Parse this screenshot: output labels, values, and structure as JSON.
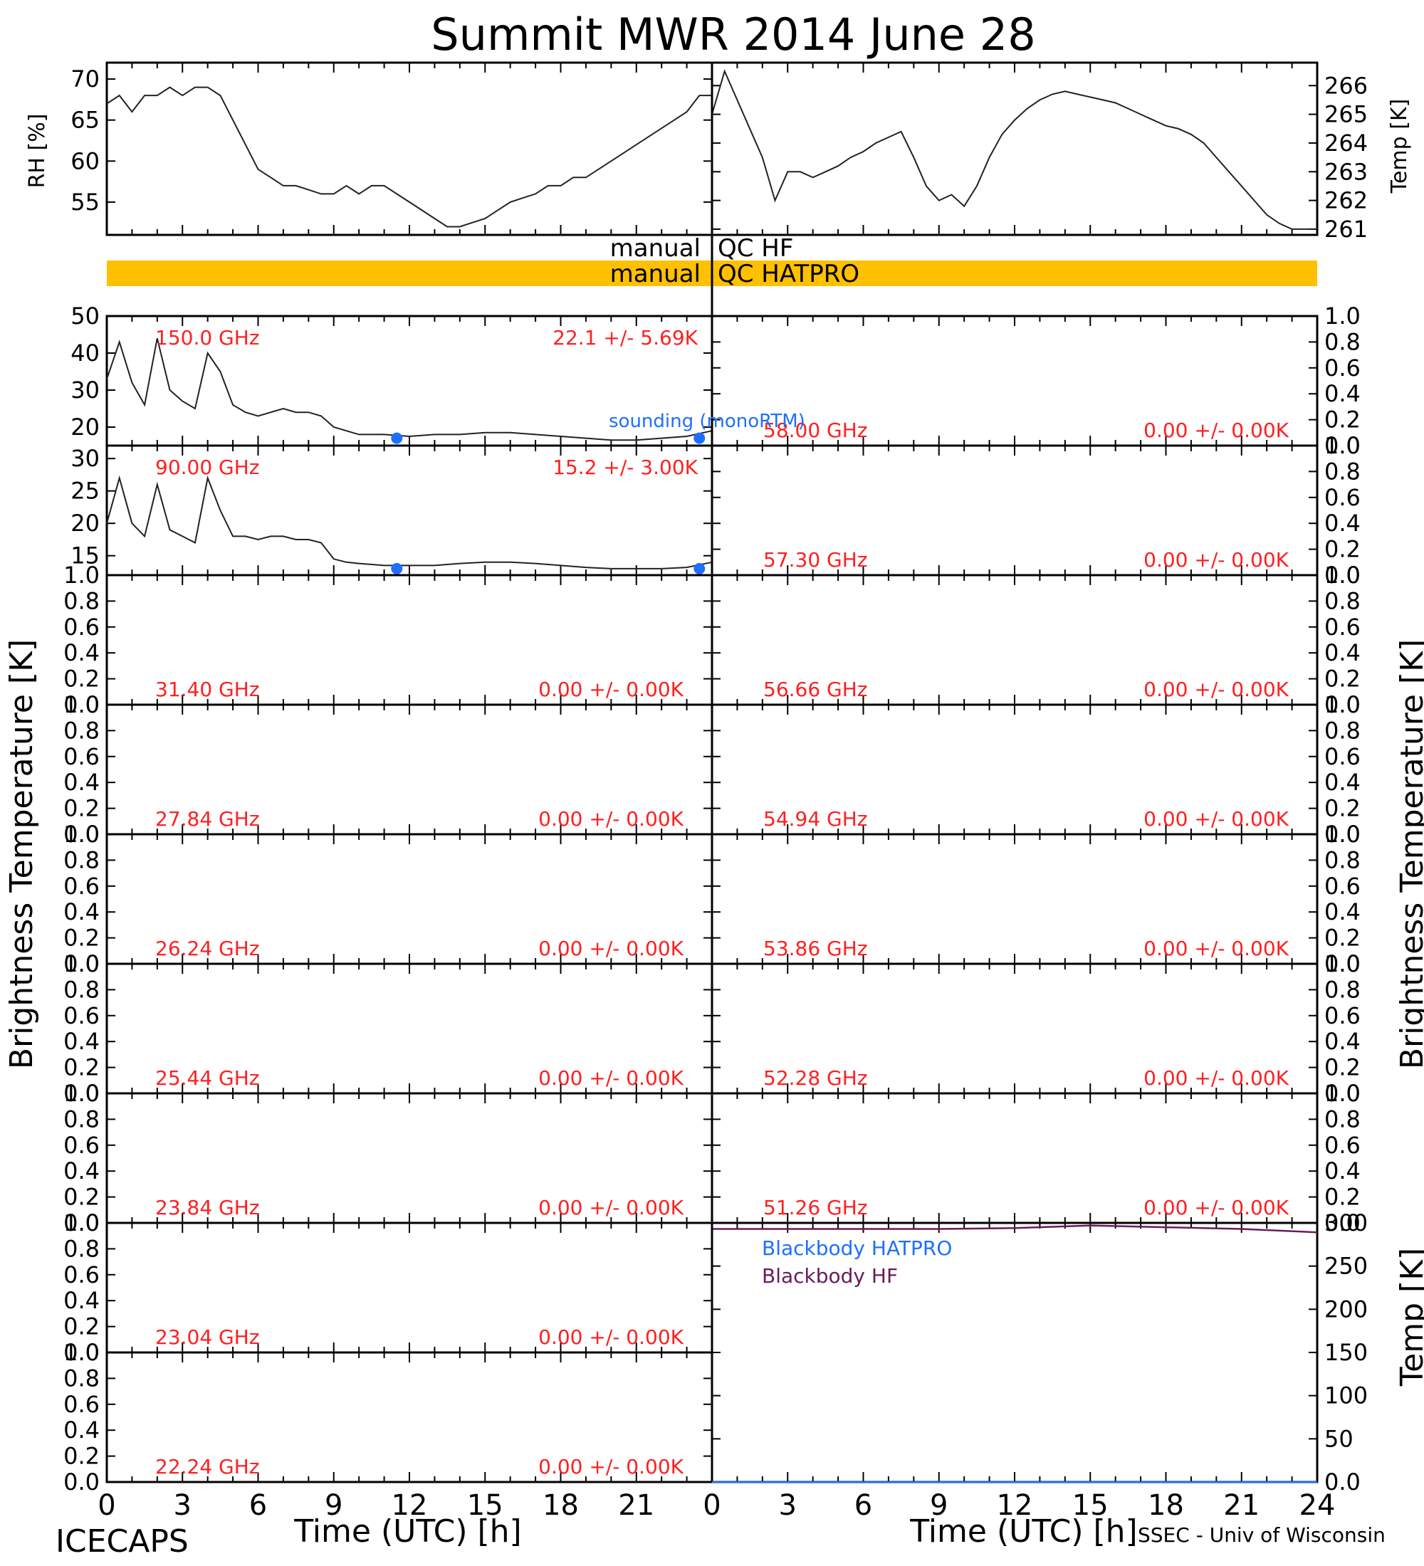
{
  "title": "Summit MWR 2014 June 28",
  "footer": {
    "left": "ICECAPS",
    "right": "SSEC - Univ of Wisconsin"
  },
  "axis_labels": {
    "x": "Time (UTC) [h]",
    "x_left_ticks": [
      "0",
      "3",
      "6",
      "9",
      "12",
      "15",
      "18",
      "21"
    ],
    "x_right_ticks": [
      "0",
      "3",
      "6",
      "9",
      "12",
      "15",
      "18",
      "21",
      "24"
    ],
    "bt_left": "Brightness Temperature [K]",
    "bt_right": "Brightness Temperature [K]",
    "rh": "RH [%]",
    "temp_top": "Temp [K]",
    "temp_bb": "Temp [K]"
  },
  "qc": {
    "hf": {
      "left": "manual",
      "right": "QC HF"
    },
    "hatpro": {
      "left": "manual",
      "right": "QC HATPRO"
    },
    "hatpro_color": "#ffc000"
  },
  "legend": {
    "sounding": "sounding (monoRTM)",
    "bb_hatpro": "Blackbody HATPRO",
    "bb_hf": "Blackbody HF"
  },
  "colors": {
    "label_red": "#ff2020",
    "sounding_blue": "#1e6fff",
    "bb_hf": "#6a1b5a",
    "bb_hatpro": "#1e6fff"
  },
  "chart_data": [
    {
      "type": "line",
      "name": "RH",
      "x": [
        0,
        0.5,
        1,
        1.5,
        2,
        2.5,
        3,
        3.5,
        4,
        4.5,
        5,
        5.5,
        6,
        6.5,
        7,
        7.5,
        8,
        8.5,
        9,
        9.5,
        10,
        10.5,
        11,
        11.5,
        12,
        12.5,
        13,
        13.5,
        14,
        14.5,
        15,
        15.5,
        16,
        16.5,
        17,
        17.5,
        18,
        18.5,
        19,
        19.5,
        20,
        20.5,
        21,
        21.5,
        22,
        22.5,
        23,
        23.5,
        24
      ],
      "y": [
        67,
        68,
        66,
        68,
        68,
        69,
        68,
        69,
        69,
        68,
        65,
        62,
        59,
        58,
        57,
        57,
        56.5,
        56,
        56,
        57,
        56,
        57,
        57,
        56,
        55,
        54,
        53,
        52,
        52,
        52.5,
        53,
        54,
        55,
        55.5,
        56,
        57,
        57,
        58,
        58,
        59,
        60,
        61,
        62,
        63,
        64,
        65,
        66,
        68,
        68
      ],
      "ylim": [
        51,
        72
      ],
      "yticks": [
        55,
        60,
        65,
        70
      ],
      "ylabel": "RH [%]"
    },
    {
      "type": "line",
      "name": "Temp",
      "x": [
        0,
        0.5,
        1,
        1.5,
        2,
        2.5,
        3,
        3.5,
        4,
        4.5,
        5,
        5.5,
        6,
        6.5,
        7,
        7.5,
        8,
        8.5,
        9,
        9.5,
        10,
        10.5,
        11,
        11.5,
        12,
        12.5,
        13,
        13.5,
        14,
        14.5,
        15,
        15.5,
        16,
        16.5,
        17,
        17.5,
        18,
        18.5,
        19,
        19.5,
        20,
        20.5,
        21,
        21.5,
        22,
        22.5,
        23,
        23.5,
        24
      ],
      "y": [
        265,
        266.5,
        265.5,
        264.5,
        263.5,
        262,
        263,
        263,
        262.8,
        263,
        263.2,
        263.5,
        263.7,
        264,
        264.2,
        264.4,
        263.5,
        262.5,
        262,
        262.2,
        261.8,
        262.5,
        263.5,
        264.3,
        264.8,
        265.2,
        265.5,
        265.7,
        265.8,
        265.7,
        265.6,
        265.5,
        265.4,
        265.2,
        265,
        264.8,
        264.6,
        264.5,
        264.3,
        264,
        263.5,
        263,
        262.5,
        262,
        261.5,
        261.2,
        261,
        261,
        261
      ],
      "ylim": [
        260.8,
        266.8
      ],
      "yticks": [
        261,
        262,
        263,
        264,
        265,
        266
      ],
      "ylabel": "Temp [K]"
    },
    {
      "type": "line",
      "name": "150.0 GHz",
      "label": "150.0 GHz",
      "stats": "22.1 +/- 5.69K",
      "x": [
        0,
        0.5,
        1,
        1.5,
        2,
        2.5,
        3,
        3.5,
        4,
        4.5,
        5,
        5.5,
        6,
        6.5,
        7,
        7.5,
        8,
        8.5,
        9,
        9.5,
        10,
        11,
        12,
        13,
        14,
        15,
        16,
        17,
        18,
        19,
        20,
        21,
        22,
        23,
        24
      ],
      "y": [
        33,
        43,
        32,
        26,
        44,
        30,
        27,
        25,
        40,
        35,
        26,
        24,
        23,
        24,
        25,
        24,
        24,
        23,
        20,
        19,
        18,
        18,
        17.5,
        18,
        18,
        18.5,
        18.5,
        18,
        17.5,
        17,
        16.5,
        16.5,
        17,
        17.5,
        19
      ],
      "sounding": [
        {
          "x": 11.5,
          "y": 17
        },
        {
          "x": 23.5,
          "y": 17
        }
      ],
      "ylim": [
        15,
        50
      ],
      "yticks": [
        20,
        30,
        40,
        50
      ]
    },
    {
      "type": "line",
      "name": "90.00 GHz",
      "label": "90.00 GHz",
      "stats": "15.2 +/- 3.00K",
      "x": [
        0,
        0.5,
        1,
        1.5,
        2,
        2.5,
        3,
        3.5,
        4,
        4.5,
        5,
        5.5,
        6,
        6.5,
        7,
        7.5,
        8,
        8.5,
        9,
        9.5,
        10,
        11,
        12,
        13,
        14,
        15,
        16,
        17,
        18,
        19,
        20,
        21,
        22,
        23,
        24
      ],
      "y": [
        20,
        27,
        20,
        18,
        26,
        19,
        18,
        17,
        27,
        22,
        18,
        18,
        17.5,
        18,
        18,
        17.5,
        17.5,
        17,
        14.5,
        14,
        13.8,
        13.5,
        13.5,
        13.5,
        13.8,
        14,
        14,
        13.8,
        13.5,
        13.2,
        13,
        13,
        13,
        13.2,
        14
      ],
      "sounding": [
        {
          "x": 11.5,
          "y": 13
        },
        {
          "x": 23.5,
          "y": 13
        }
      ],
      "ylim": [
        12,
        32
      ],
      "yticks": [
        15,
        20,
        25,
        30
      ]
    },
    {
      "type": "line",
      "name": "31.40 GHz",
      "label": "31.40 GHz",
      "stats": "0.00 +/- 0.00K",
      "ylim": [
        0,
        1
      ],
      "yticks": [
        0.0,
        0.2,
        0.4,
        0.6,
        0.8,
        1.0
      ]
    },
    {
      "type": "line",
      "name": "27.84 GHz",
      "label": "27.84 GHz",
      "stats": "0.00 +/- 0.00K",
      "ylim": [
        0,
        1
      ],
      "yticks": [
        0.0,
        0.2,
        0.4,
        0.6,
        0.8,
        1.0
      ]
    },
    {
      "type": "line",
      "name": "26.24 GHz",
      "label": "26.24 GHz",
      "stats": "0.00 +/- 0.00K",
      "ylim": [
        0,
        1
      ],
      "yticks": [
        0.0,
        0.2,
        0.4,
        0.6,
        0.8,
        1.0
      ]
    },
    {
      "type": "line",
      "name": "25.44 GHz",
      "label": "25.44 GHz",
      "stats": "0.00 +/- 0.00K",
      "ylim": [
        0,
        1
      ],
      "yticks": [
        0.0,
        0.2,
        0.4,
        0.6,
        0.8,
        1.0
      ]
    },
    {
      "type": "line",
      "name": "23.84 GHz",
      "label": "23.84 GHz",
      "stats": "0.00 +/- 0.00K",
      "ylim": [
        0,
        1
      ],
      "yticks": [
        0.0,
        0.2,
        0.4,
        0.6,
        0.8,
        1.0
      ]
    },
    {
      "type": "line",
      "name": "23.04 GHz",
      "label": "23.04 GHz",
      "stats": "0.00 +/- 0.00K",
      "ylim": [
        0,
        1
      ],
      "yticks": [
        0.0,
        0.2,
        0.4,
        0.6,
        0.8,
        1.0
      ]
    },
    {
      "type": "line",
      "name": "22.24 GHz",
      "label": "22.24 GHz",
      "stats": "0.00 +/- 0.00K",
      "ylim": [
        0,
        1
      ],
      "yticks": [
        0.0,
        0.2,
        0.4,
        0.6,
        0.8,
        1.0
      ]
    },
    {
      "type": "line",
      "name": "58.00 GHz",
      "label": "58.00 GHz",
      "stats": "0.00 +/- 0.00K",
      "ylim": [
        0,
        1
      ],
      "yticks": [
        0.0,
        0.2,
        0.4,
        0.6,
        0.8,
        1.0
      ]
    },
    {
      "type": "line",
      "name": "57.30 GHz",
      "label": "57.30 GHz",
      "stats": "0.00 +/- 0.00K",
      "ylim": [
        0,
        1
      ],
      "yticks": [
        0.0,
        0.2,
        0.4,
        0.6,
        0.8,
        1.0
      ]
    },
    {
      "type": "line",
      "name": "56.66 GHz",
      "label": "56.66 GHz",
      "stats": "0.00 +/- 0.00K",
      "ylim": [
        0,
        1
      ],
      "yticks": [
        0.0,
        0.2,
        0.4,
        0.6,
        0.8,
        1.0
      ]
    },
    {
      "type": "line",
      "name": "54.94 GHz",
      "label": "54.94 GHz",
      "stats": "0.00 +/- 0.00K",
      "ylim": [
        0,
        1
      ],
      "yticks": [
        0.0,
        0.2,
        0.4,
        0.6,
        0.8,
        1.0
      ]
    },
    {
      "type": "line",
      "name": "53.86 GHz",
      "label": "53.86 GHz",
      "stats": "0.00 +/- 0.00K",
      "ylim": [
        0,
        1
      ],
      "yticks": [
        0.0,
        0.2,
        0.4,
        0.6,
        0.8,
        1.0
      ]
    },
    {
      "type": "line",
      "name": "52.28 GHz",
      "label": "52.28 GHz",
      "stats": "0.00 +/- 0.00K",
      "ylim": [
        0,
        1
      ],
      "yticks": [
        0.0,
        0.2,
        0.4,
        0.6,
        0.8,
        1.0
      ]
    },
    {
      "type": "line",
      "name": "51.26 GHz",
      "label": "51.26 GHz",
      "stats": "0.00 +/- 0.00K",
      "ylim": [
        0,
        1
      ],
      "yticks": [
        0.0,
        0.2,
        0.4,
        0.6,
        0.8,
        1.0
      ]
    },
    {
      "type": "line",
      "name": "Blackbody",
      "x": [
        0,
        3,
        6,
        9,
        12,
        15,
        18,
        21,
        24
      ],
      "series": [
        {
          "name": "Blackbody HF",
          "values": [
            293,
            293,
            293,
            293,
            294,
            297,
            295,
            293,
            289
          ]
        },
        {
          "name": "Blackbody HATPRO",
          "values": [
            0,
            0,
            0,
            0,
            0,
            0,
            0,
            0,
            0
          ]
        }
      ],
      "ylim": [
        0,
        300
      ],
      "yticks": [
        0,
        50,
        100,
        150,
        200,
        250,
        300
      ]
    }
  ]
}
